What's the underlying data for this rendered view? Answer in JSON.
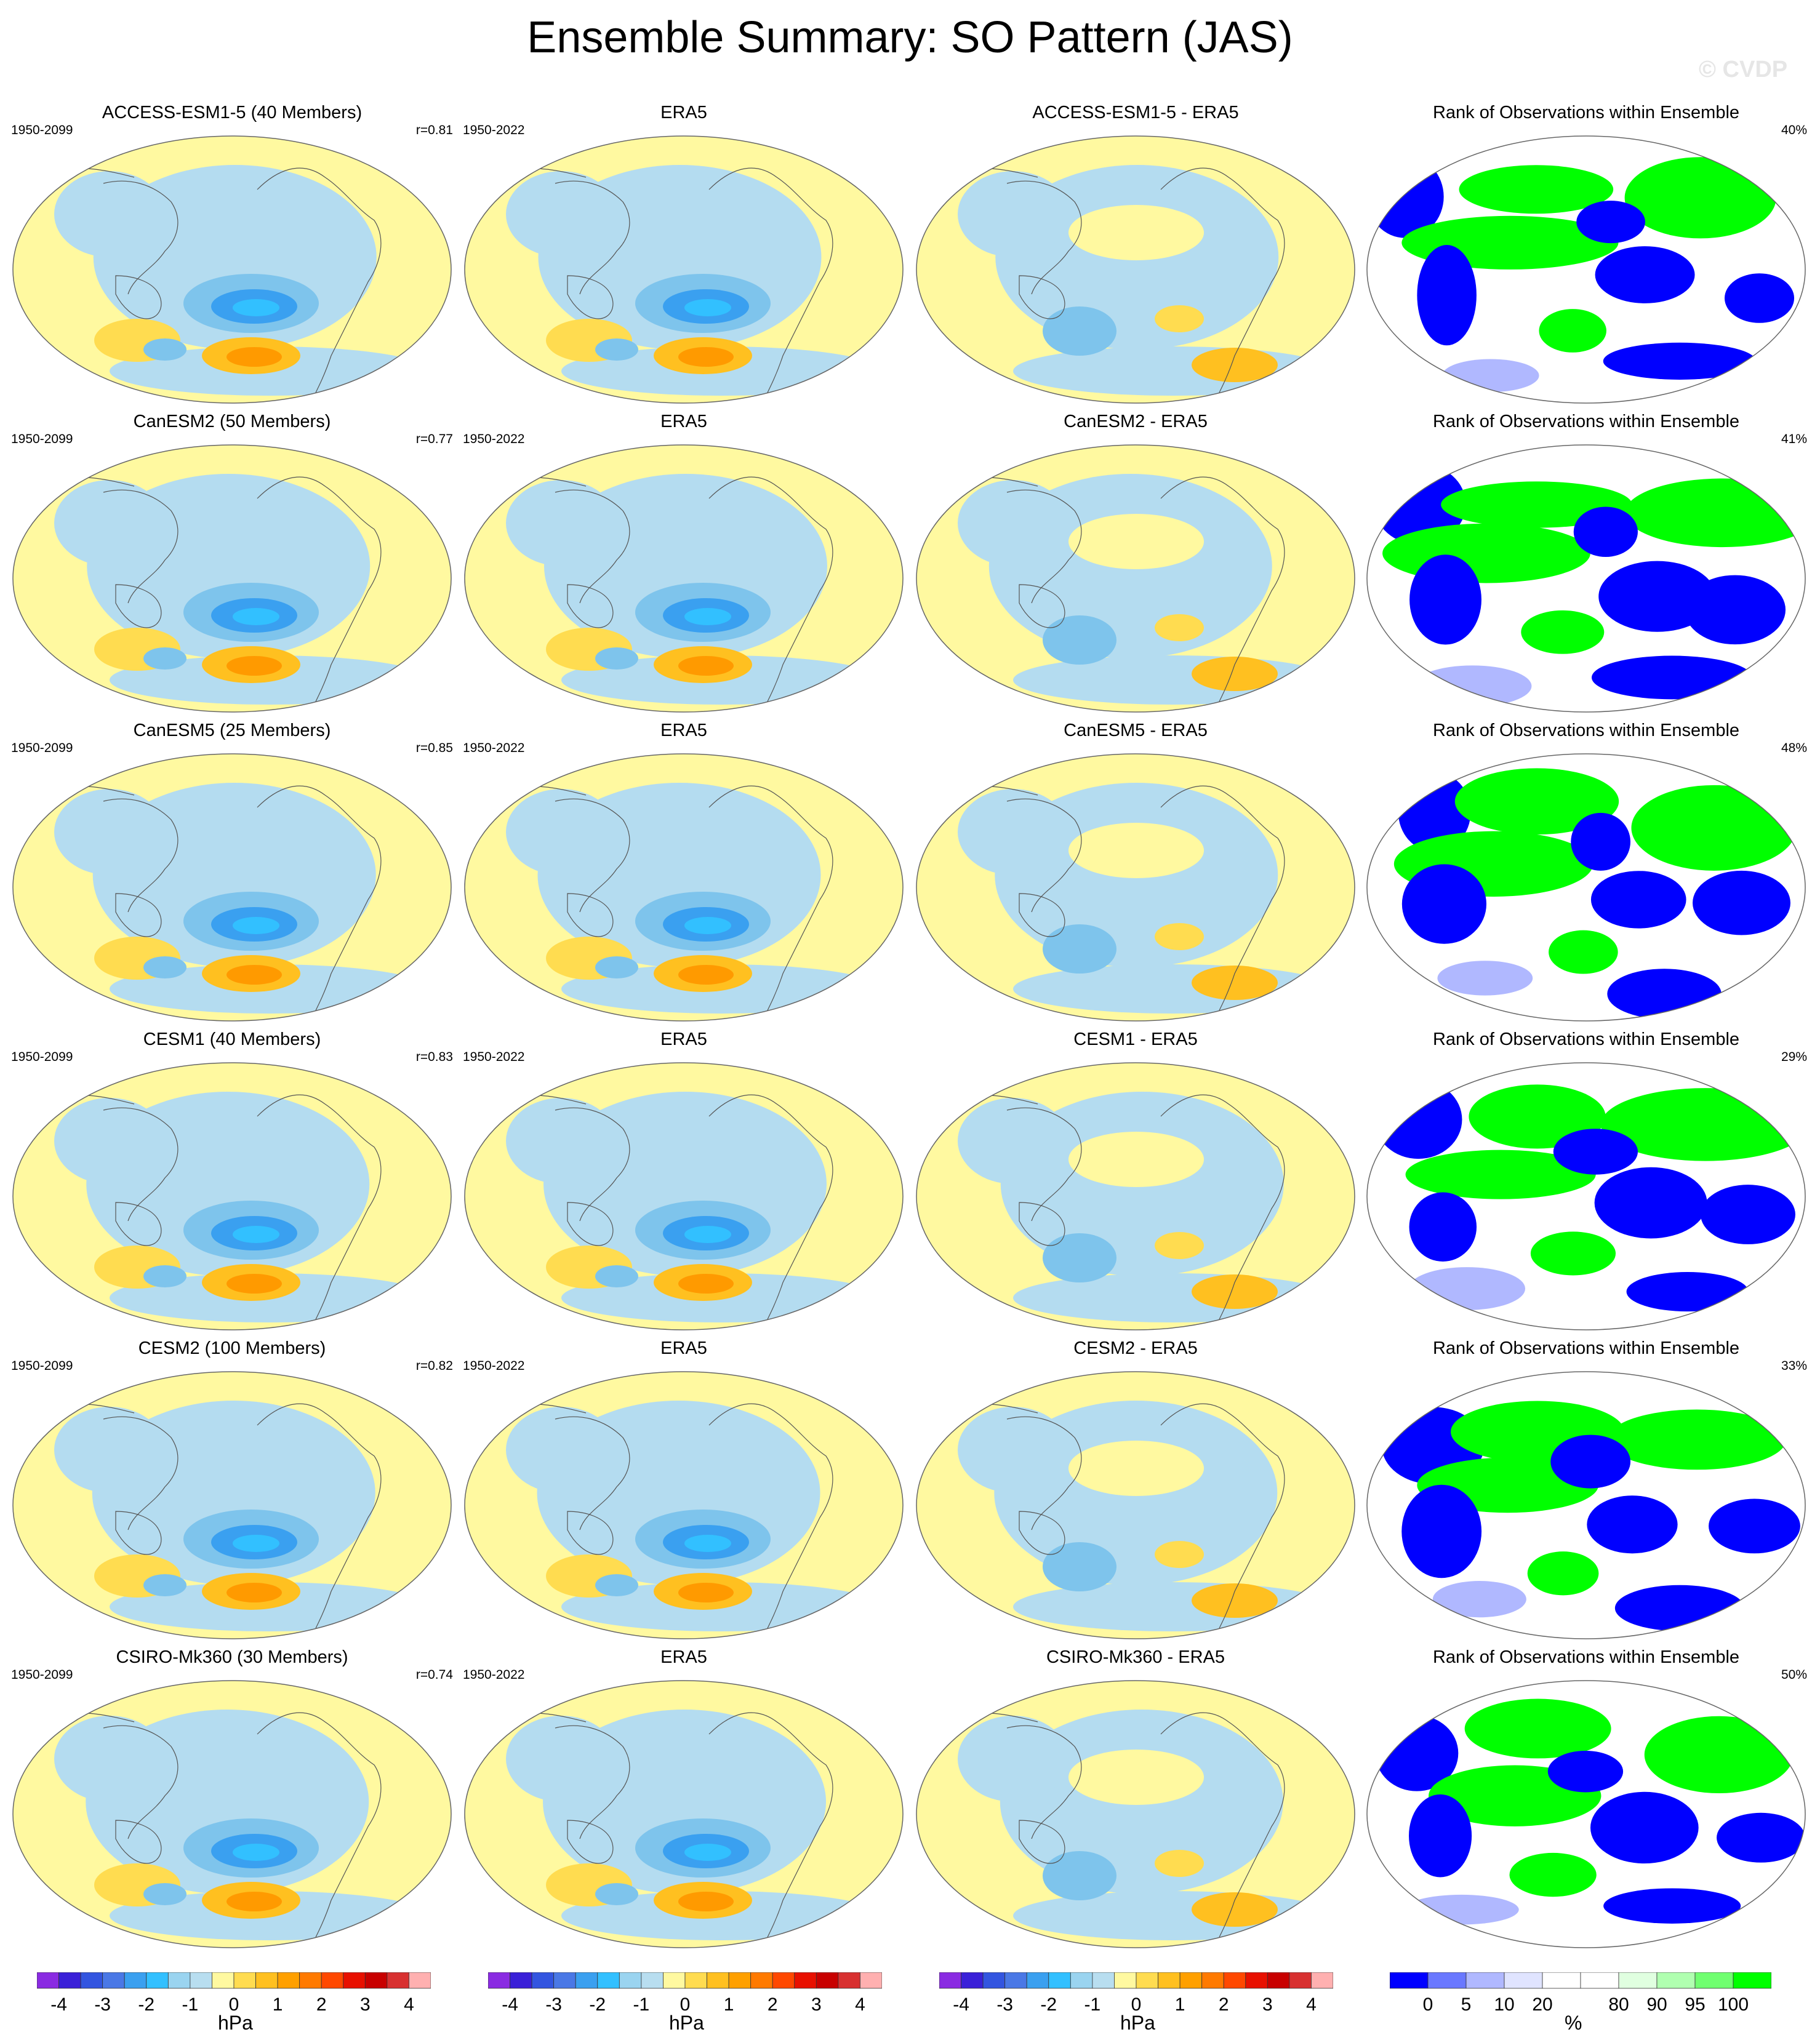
{
  "title": "Ensemble Summary: SO Pattern (JAS)",
  "watermark": "© CVDP",
  "colors": {
    "map_background": "#fff9a0",
    "ocean_negative": "#b4dcf0",
    "rank_white": "#ffffff",
    "rank_blue": "#0000ff",
    "rank_green": "#00ff00"
  },
  "columns": [
    {
      "kind": "model"
    },
    {
      "kind": "obs"
    },
    {
      "kind": "diff"
    },
    {
      "kind": "rank"
    }
  ],
  "rows": [
    {
      "model_title": "ACCESS-ESM1-5 (40 Members)",
      "model_years": "1950-2099",
      "r": "r=0.81",
      "obs_title": "ERA5",
      "obs_years": "1950-2022",
      "diff_title": "ACCESS-ESM1-5 - ERA5",
      "rank_title": "Rank of Observations within Ensemble",
      "rank_pct": "40%"
    },
    {
      "model_title": "CanESM2 (50 Members)",
      "model_years": "1950-2099",
      "r": "r=0.77",
      "obs_title": "ERA5",
      "obs_years": "1950-2022",
      "diff_title": "CanESM2 - ERA5",
      "rank_title": "Rank of Observations within Ensemble",
      "rank_pct": "41%"
    },
    {
      "model_title": "CanESM5 (25 Members)",
      "model_years": "1950-2099",
      "r": "r=0.85",
      "obs_title": "ERA5",
      "obs_years": "1950-2022",
      "diff_title": "CanESM5 - ERA5",
      "rank_title": "Rank of Observations within Ensemble",
      "rank_pct": "48%"
    },
    {
      "model_title": "CESM1 (40 Members)",
      "model_years": "1950-2099",
      "r": "r=0.83",
      "obs_title": "ERA5",
      "obs_years": "1950-2022",
      "diff_title": "CESM1 - ERA5",
      "rank_title": "Rank of Observations within Ensemble",
      "rank_pct": "29%"
    },
    {
      "model_title": "CESM2 (100 Members)",
      "model_years": "1950-2099",
      "r": "r=0.82",
      "obs_title": "ERA5",
      "obs_years": "1950-2022",
      "diff_title": "CESM2 - ERA5",
      "rank_title": "Rank of Observations within Ensemble",
      "rank_pct": "33%"
    },
    {
      "model_title": "CSIRO-Mk360 (30 Members)",
      "model_years": "1950-2099",
      "r": "r=0.74",
      "obs_title": "ERA5",
      "obs_years": "1950-2022",
      "diff_title": "CSIRO-Mk360 - ERA5",
      "rank_title": "Rank of Observations within Ensemble",
      "rank_pct": "50%"
    }
  ],
  "colorbars": [
    {
      "units": "hPa",
      "colors": [
        "#8a2be2",
        "#3a20d8",
        "#3355e0",
        "#4a78e6",
        "#3aa0f0",
        "#32c0ff",
        "#9ad4f0",
        "#b8def0",
        "#fff9a0",
        "#ffdc50",
        "#ffc020",
        "#ffa000",
        "#ff7a00",
        "#ff4800",
        "#e81000",
        "#c80000",
        "#d83030",
        "#ffb0b0"
      ],
      "ticks": [
        "-4",
        "-3",
        "-2",
        "-1",
        "0",
        "1",
        "2",
        "3",
        "4"
      ]
    },
    {
      "units": "hPa",
      "colors": [
        "#8a2be2",
        "#3a20d8",
        "#3355e0",
        "#4a78e6",
        "#3aa0f0",
        "#32c0ff",
        "#9ad4f0",
        "#b8def0",
        "#fff9a0",
        "#ffdc50",
        "#ffc020",
        "#ffa000",
        "#ff7a00",
        "#ff4800",
        "#e81000",
        "#c80000",
        "#d83030",
        "#ffb0b0"
      ],
      "ticks": [
        "-4",
        "-3",
        "-2",
        "-1",
        "0",
        "1",
        "2",
        "3",
        "4"
      ]
    },
    {
      "units": "hPa",
      "colors": [
        "#8a2be2",
        "#3a20d8",
        "#3355e0",
        "#4a78e6",
        "#3aa0f0",
        "#32c0ff",
        "#9ad4f0",
        "#b8def0",
        "#fff9a0",
        "#ffdc50",
        "#ffc020",
        "#ffa000",
        "#ff7a00",
        "#ff4800",
        "#e81000",
        "#c80000",
        "#d83030",
        "#ffb0b0"
      ],
      "ticks": [
        "-4",
        "-3",
        "-2",
        "-1",
        "0",
        "1",
        "2",
        "3",
        "4"
      ]
    },
    {
      "units": "%",
      "colors": [
        "#0000ff",
        "#6a78ff",
        "#b0b8ff",
        "#e0e4ff",
        "#ffffff",
        "#ffffff",
        "#e0ffe0",
        "#b0ffb0",
        "#70ff70",
        "#00ff00"
      ],
      "ticks": [
        "0",
        "5",
        "10",
        "20",
        "80",
        "90",
        "95",
        "100"
      ]
    }
  ],
  "chart_data": {
    "type": "map-grid",
    "title": "Ensemble Summary: SO Pattern (JAS)",
    "units": "hPa",
    "contour_levels": [
      -4,
      -3.5,
      -3,
      -2.5,
      -2,
      -1.5,
      -1,
      -0.5,
      0,
      0.5,
      1,
      1.5,
      2,
      2.5,
      3,
      3.5,
      4
    ],
    "rank_levels": [
      0,
      5,
      10,
      20,
      80,
      90,
      95,
      100
    ],
    "pattern_correlations": [
      {
        "model": "ACCESS-ESM1-5",
        "members": 40,
        "r": 0.81,
        "rank_percent": 40
      },
      {
        "model": "CanESM2",
        "members": 50,
        "r": 0.77,
        "rank_percent": 41
      },
      {
        "model": "CanESM5",
        "members": 25,
        "r": 0.85,
        "rank_percent": 48
      },
      {
        "model": "CESM1",
        "members": 40,
        "r": 0.83,
        "rank_percent": 29
      },
      {
        "model": "CESM2",
        "members": 100,
        "r": 0.82,
        "rank_percent": 33
      },
      {
        "model": "CSIRO-Mk360",
        "members": 30,
        "r": 0.74,
        "rank_percent": 50
      }
    ]
  }
}
